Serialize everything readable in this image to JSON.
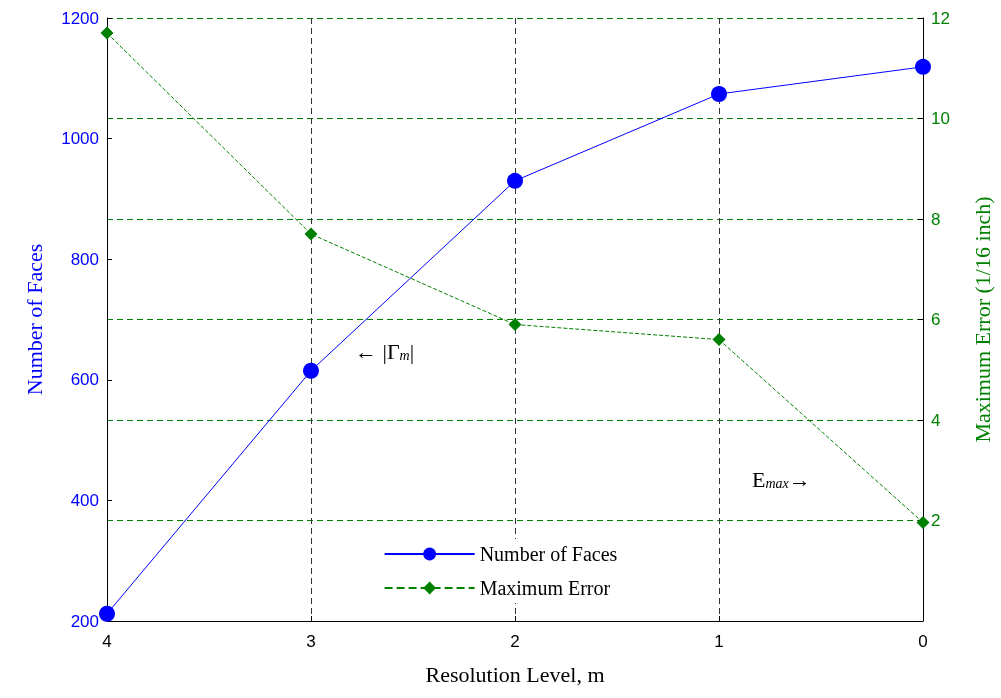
{
  "chart_data": {
    "type": "line",
    "categories": [
      "4",
      "3",
      "2",
      "1",
      "0"
    ],
    "xlabel": "Resolution Level, m",
    "ylabel": "Number of Faces",
    "y2label": "Maximum Error (1/16 inch)",
    "ylim": [
      200,
      1200
    ],
    "yticks": [
      200,
      400,
      600,
      800,
      1000,
      1200
    ],
    "y2lim": [
      0,
      12
    ],
    "y2ticks": [
      2,
      4,
      6,
      8,
      10,
      12
    ],
    "grid": true,
    "legend": "bottom",
    "annotations": [
      "← |Γ$_{m}$|",
      "E$_{max}$→"
    ],
    "series": [
      {
        "name": "Number of Faces",
        "color": "#0000ff",
        "marker": "circle",
        "line_style": "solid",
        "values": [
          212,
          615,
          930,
          1074,
          1119
        ]
      },
      {
        "name": "Maximum Error",
        "color": "#008000",
        "marker": "diamond",
        "line_style": "dashed",
        "axis": "y2",
        "values": [
          11.7,
          7.7,
          5.9,
          5.6,
          1.96
        ]
      }
    ]
  }
}
